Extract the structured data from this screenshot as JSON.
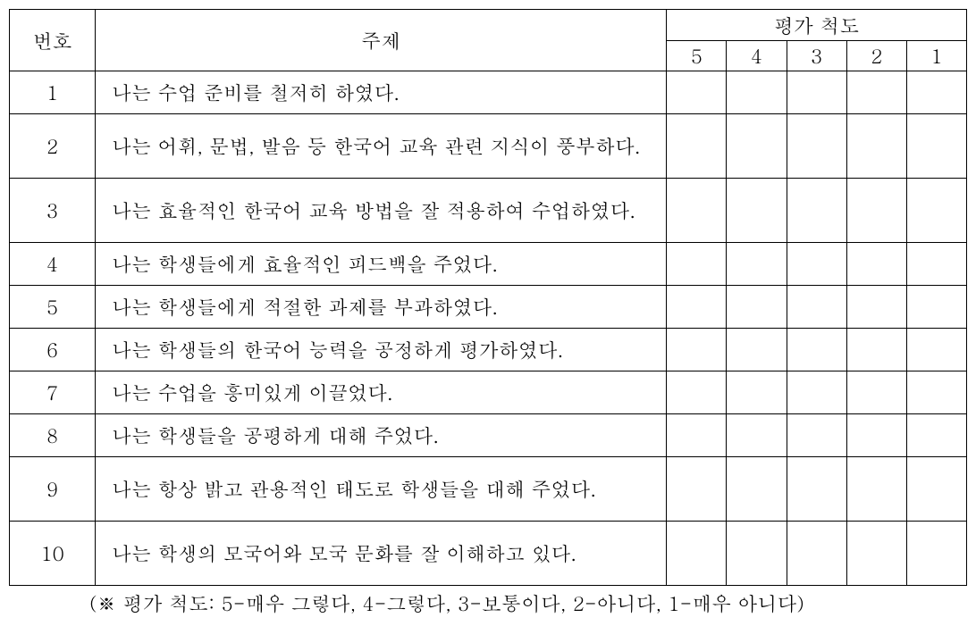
{
  "header": {
    "num": "번호",
    "topic": "주제",
    "scale_group": "평가 척도",
    "scales": [
      "5",
      "4",
      "3",
      "2",
      "1"
    ]
  },
  "rows": [
    {
      "num": "1",
      "topic": "나는 수업 준비를 철저히 하였다.",
      "tall": false
    },
    {
      "num": "2",
      "topic": "나는 어휘, 문법, 발음 등 한국어 교육 관련 지식이 풍부하다.",
      "tall": true
    },
    {
      "num": "3",
      "topic": "나는 효율적인 한국어 교육 방법을 잘 적용하여 수업하였다.",
      "tall": true
    },
    {
      "num": "4",
      "topic": "나는 학생들에게 효율적인 피드백을 주었다.",
      "tall": false
    },
    {
      "num": "5",
      "topic": "나는 학생들에게 적절한 과제를 부과하였다.",
      "tall": false
    },
    {
      "num": "6",
      "topic": "나는 학생들의 한국어 능력을 공정하게 평가하였다.",
      "tall": false
    },
    {
      "num": "7",
      "topic": "나는 수업을 흥미있게 이끌었다.",
      "tall": false
    },
    {
      "num": "8",
      "topic": "나는 학생들을 공평하게 대해 주었다.",
      "tall": false
    },
    {
      "num": "9",
      "topic": "나는 항상 밝고 관용적인 태도로 학생들을 대해 주었다.",
      "tall": true
    },
    {
      "num": "10",
      "topic": "나는 학생의 모국어와 모국 문화를 잘 이해하고 있다.",
      "tall": true
    }
  ],
  "footnote": "(※ 평가 척도: 5-매우 그렇다, 4-그렇다, 3-보통이다, 2-아니다, 1-매우 아니다)"
}
